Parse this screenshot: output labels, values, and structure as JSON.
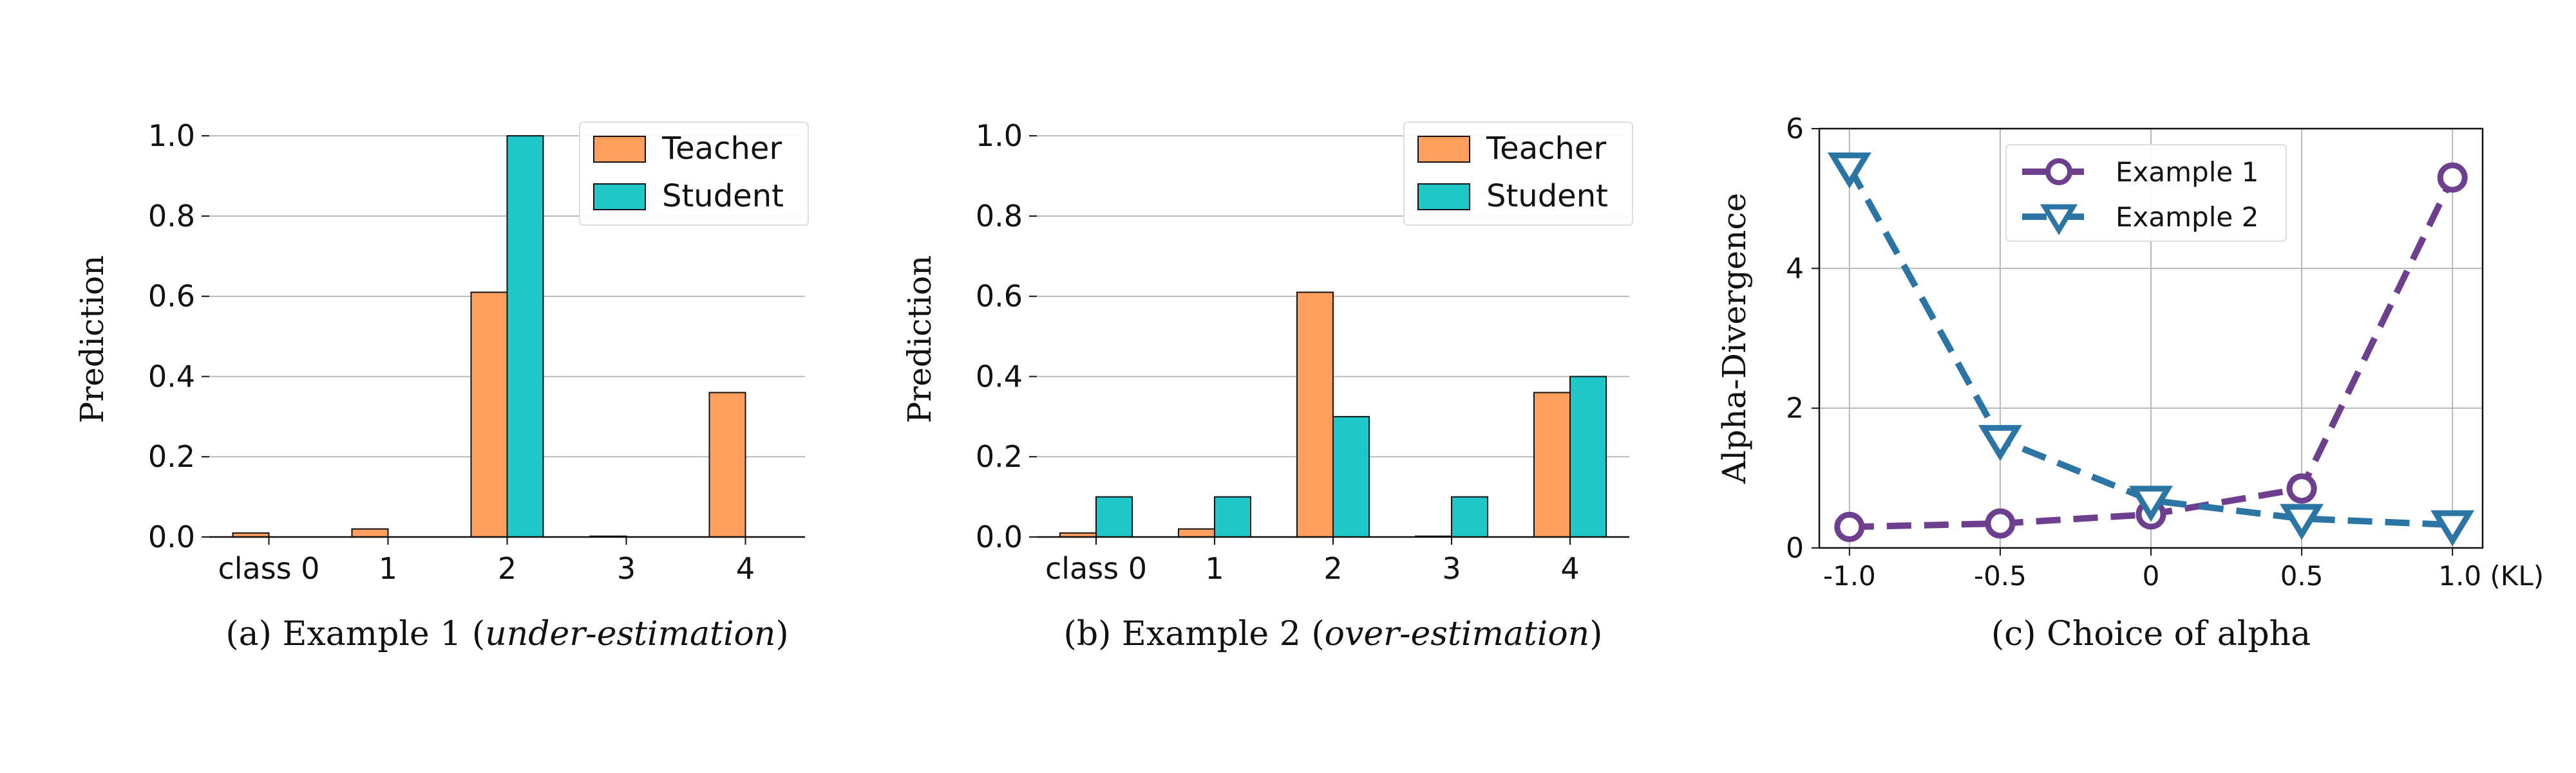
{
  "colors": {
    "teacher": "#ff9e5e",
    "student": "#1fc8c8",
    "example1": "#6e3e8f",
    "example2": "#2a75a4",
    "grid": "#b8b8b8",
    "edge": "#111111"
  },
  "chart_data": [
    {
      "type": "bar",
      "caption_prefix": "(a) Example 1 (",
      "caption_emph": "under-estimation",
      "caption_suffix": ")",
      "ylabel": "Prediction",
      "categories": [
        "class 0",
        "1",
        "2",
        "3",
        "4"
      ],
      "yticks": [
        "0.0",
        "0.2",
        "0.4",
        "0.6",
        "0.8",
        "1.0"
      ],
      "ylim": [
        0,
        1.05
      ],
      "grid": "horizontal",
      "legend_position": "top-right",
      "series": [
        {
          "name": "Teacher",
          "color_key": "teacher",
          "values": [
            0.01,
            0.02,
            0.61,
            0.002,
            0.36
          ]
        },
        {
          "name": "Student",
          "color_key": "student",
          "values": [
            0.0,
            0.0,
            1.0,
            0.0,
            0.0
          ]
        }
      ]
    },
    {
      "type": "bar",
      "caption_prefix": "(b) Example 2 (",
      "caption_emph": "over-estimation",
      "caption_suffix": ")",
      "ylabel": "Prediction",
      "categories": [
        "class 0",
        "1",
        "2",
        "3",
        "4"
      ],
      "yticks": [
        "0.0",
        "0.2",
        "0.4",
        "0.6",
        "0.8",
        "1.0"
      ],
      "ylim": [
        0,
        1.05
      ],
      "grid": "horizontal",
      "legend_position": "top-right",
      "series": [
        {
          "name": "Teacher",
          "color_key": "teacher",
          "values": [
            0.01,
            0.02,
            0.61,
            0.002,
            0.36
          ]
        },
        {
          "name": "Student",
          "color_key": "student",
          "values": [
            0.1,
            0.1,
            0.3,
            0.1,
            0.4
          ]
        }
      ]
    },
    {
      "type": "line",
      "caption": "(c) Choice of alpha",
      "ylabel": "Alpha-Divergence",
      "x": [
        -1.0,
        -0.5,
        0,
        0.5,
        1.0
      ],
      "xticks": [
        "-1.0",
        "-0.5",
        "0",
        "0.5",
        "1.0 (KL)"
      ],
      "yticks": [
        "0",
        "2",
        "4",
        "6"
      ],
      "ylim": [
        0,
        6
      ],
      "grid": "both",
      "legend_position": "top-center",
      "series": [
        {
          "name": "Example 1",
          "color_key": "example1",
          "marker": "circle",
          "values": [
            0.3,
            0.35,
            0.48,
            0.85,
            5.3
          ]
        },
        {
          "name": "Example 2",
          "color_key": "example2",
          "marker": "triangle-down",
          "values": [
            5.45,
            1.55,
            0.68,
            0.42,
            0.33
          ]
        }
      ]
    }
  ]
}
